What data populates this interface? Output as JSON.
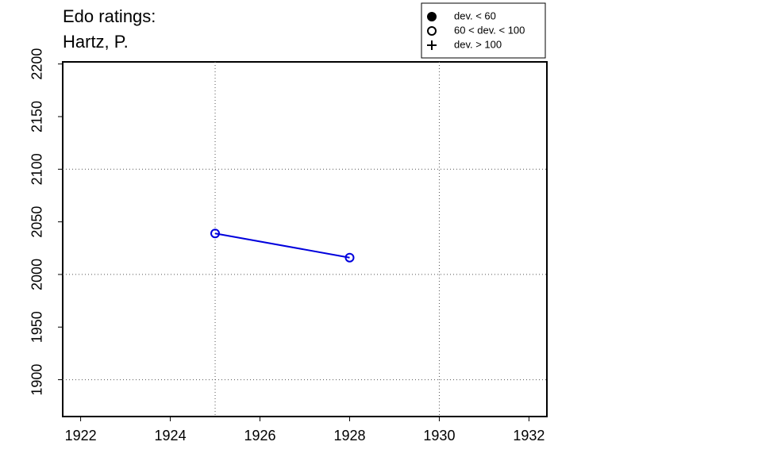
{
  "chart_data": {
    "type": "line",
    "title": [
      "Edo ratings:",
      "Hartz, P."
    ],
    "x": [
      1925,
      1928
    ],
    "series": [
      {
        "name": "Hartz, P.",
        "color": "#0000dd",
        "marker": "open-circle",
        "values": [
          2039,
          2016
        ]
      }
    ],
    "xlim": [
      1921.6,
      1932.4
    ],
    "xticks": [
      1922,
      1924,
      1926,
      1928,
      1930,
      1932
    ],
    "ylim": [
      1865,
      2202
    ],
    "yticks": [
      1900,
      1950,
      2000,
      2050,
      2100,
      2150,
      2200
    ],
    "xgrid": [
      1925,
      1930
    ],
    "ygrid": [
      1900,
      2000,
      2100
    ],
    "legend": {
      "position": "top",
      "entries": [
        {
          "marker": "filled-circle",
          "label": "dev. < 60"
        },
        {
          "marker": "open-circle",
          "label": "60 < dev. < 100"
        },
        {
          "marker": "plus",
          "label": "dev. > 100"
        }
      ]
    }
  }
}
